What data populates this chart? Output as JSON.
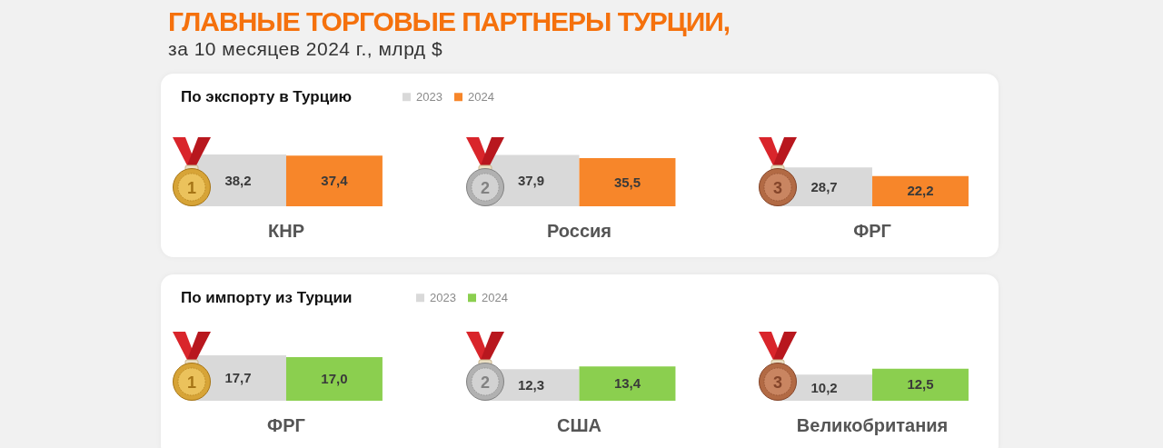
{
  "chart_data": [
    {
      "type": "other",
      "title": "ГЛАВНЫЕ ТОРГОВЫЕ ПАРТНЕРЫ ТУРЦИИ,",
      "subtitle": "за 10 месяцев 2024 г., млрд $"
    },
    {
      "type": "bar",
      "title": "По экспорту в Турцию",
      "categories": [
        "КНР",
        "Россия",
        "ФРГ"
      ],
      "series": [
        {
          "name": "2023",
          "color": "#d9d9d9",
          "values": [
            38.2,
            37.9,
            28.7
          ],
          "value_labels": [
            "38,2",
            "37,9",
            "28,7"
          ]
        },
        {
          "name": "2024",
          "color": "#f7862a",
          "values": [
            37.4,
            35.5,
            22.2
          ],
          "value_labels": [
            "37,4",
            "35,5",
            "22,2"
          ]
        }
      ],
      "legend": "top left",
      "annotations": [
        "1",
        "2",
        "3"
      ]
    },
    {
      "type": "bar",
      "title": "По импорту из Турции",
      "categories": [
        "ФРГ",
        "США",
        "Великобритания"
      ],
      "series": [
        {
          "name": "2023",
          "color": "#d9d9d9",
          "values": [
            17.7,
            12.3,
            10.2
          ],
          "value_labels": [
            "17,7",
            "12,3",
            "10,2"
          ]
        },
        {
          "name": "2024",
          "color": "#8bcf4f",
          "values": [
            17.0,
            13.4,
            12.5
          ],
          "value_labels": [
            "17,0",
            "13,4",
            "12,5"
          ]
        }
      ],
      "legend": "top left",
      "annotations": [
        "1",
        "2",
        "3"
      ]
    }
  ]
}
